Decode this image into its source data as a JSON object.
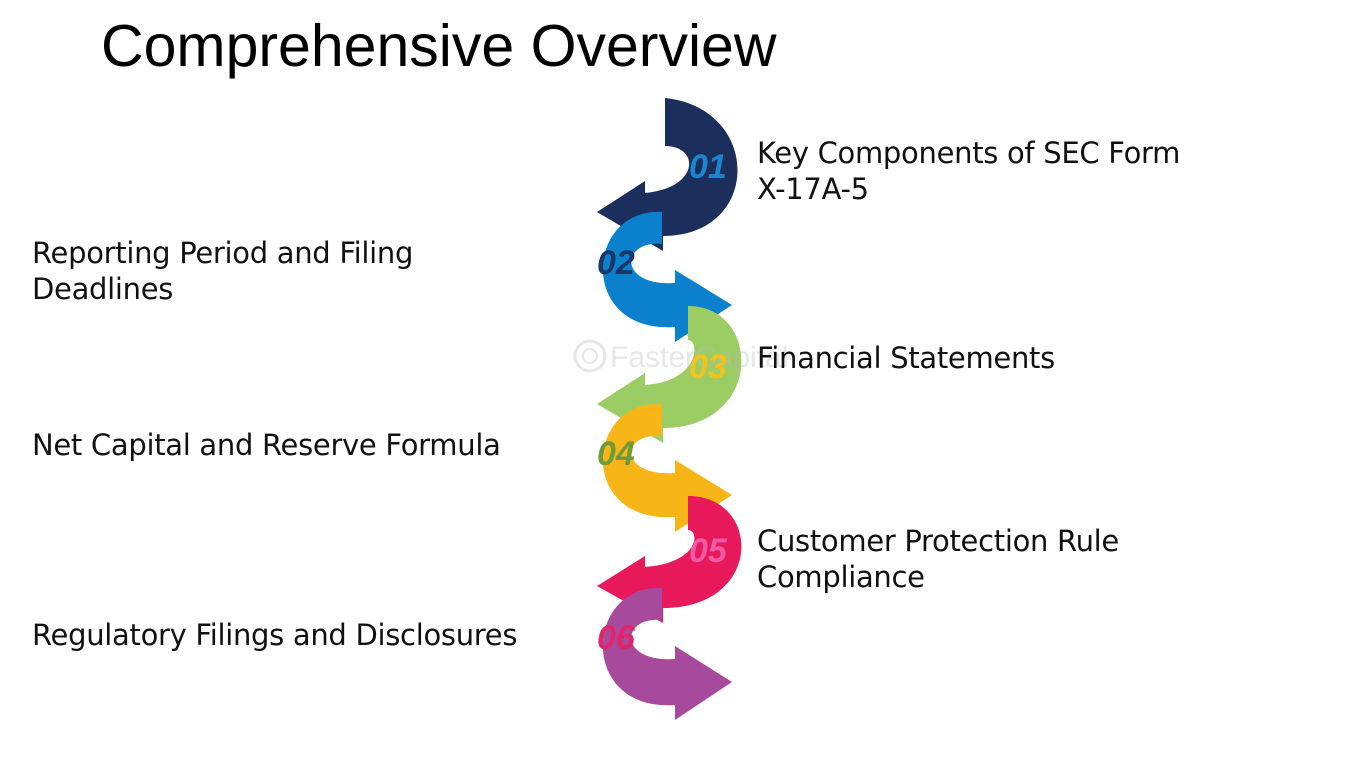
{
  "title": "Comprehensive Overview",
  "steps": [
    {
      "number": "01",
      "lines": [
        "Key Components of SEC Form",
        "X-17A-5"
      ],
      "color": "#1c2f5c",
      "number_color": "#1a86d0"
    },
    {
      "number": "02",
      "lines": [
        "Reporting Period and Filing",
        "Deadlines"
      ],
      "color": "#0b80cc",
      "number_color": "#183766"
    },
    {
      "number": "03",
      "lines": [
        "Financial Statements"
      ],
      "color": "#9ccd64",
      "number_color": "#f2c21e"
    },
    {
      "number": "04",
      "lines": [
        "Net Capital and Reserve Formula"
      ],
      "color": "#f7b518",
      "number_color": "#6f9a3a"
    },
    {
      "number": "05",
      "lines": [
        "Customer Protection Rule",
        "Compliance"
      ],
      "color": "#e8195b",
      "number_color": "#f05aa6"
    },
    {
      "number": "06",
      "lines": [
        "Regulatory Filings and Disclosures"
      ],
      "color": "#a84a9c",
      "number_color": "#e0256b"
    }
  ],
  "watermark": "FasterCapital"
}
